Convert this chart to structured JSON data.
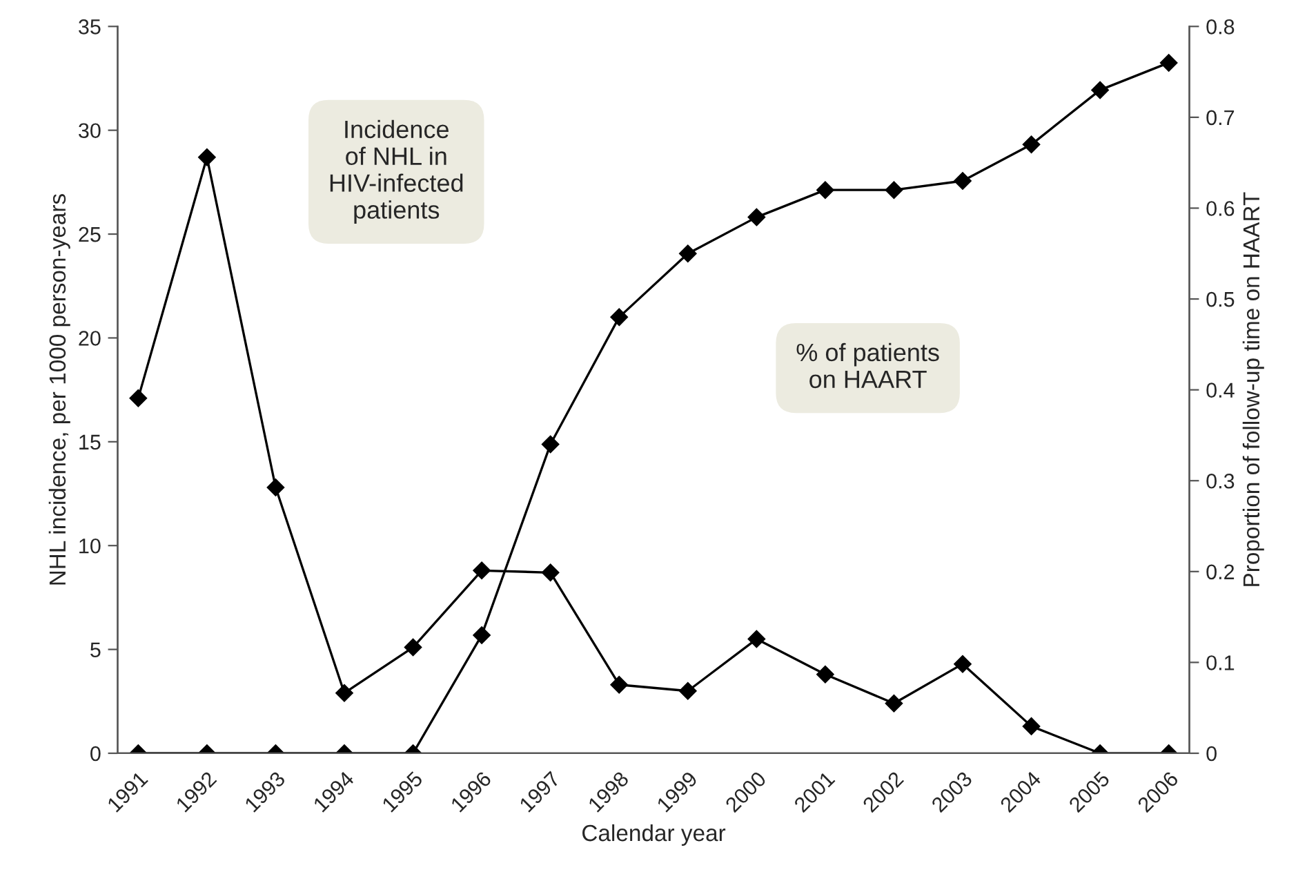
{
  "chart_data": {
    "type": "line",
    "xlabel": "Calendar year",
    "ylabel": "NHL incidence, per 1000 person-years",
    "y2label": "Proportion of follow-up time on HAART",
    "categories": [
      "1991",
      "1992",
      "1993",
      "1994",
      "1995",
      "1996",
      "1997",
      "1998",
      "1999",
      "2000",
      "2001",
      "2002",
      "2003",
      "2004",
      "2005",
      "2006"
    ],
    "series": [
      {
        "color": "#000000",
        "values": [
          17.1,
          28.7,
          12.8,
          2.9,
          5.1,
          8.8,
          8.7,
          3.3,
          3.0,
          5.5,
          3.8,
          2.4,
          4.3,
          1.3,
          0,
          0
        ]
      },
      {
        "color": "#000000",
        "axis": "y2",
        "values": [
          0,
          0,
          0,
          0,
          0,
          0.13,
          0.34,
          0.48,
          0.55,
          0.59,
          0.62,
          0.62,
          0.63,
          0.67,
          0.73,
          0.76
        ]
      }
    ],
    "ylim": [
      0,
      35
    ],
    "yticks": [
      0,
      5,
      10,
      15,
      20,
      25,
      30,
      35
    ],
    "y2lim": [
      0,
      0.8
    ],
    "y2ticks": [
      0,
      0.1,
      0.2,
      0.3,
      0.4,
      0.5,
      0.6,
      0.7,
      0.8
    ],
    "annotations": [
      "Incidence\nof NHL in\nHIV-infected\npatients",
      "% of patients\non HAART"
    ],
    "marker": "diamond",
    "line_style": "solid",
    "grid": false,
    "legend": false
  }
}
